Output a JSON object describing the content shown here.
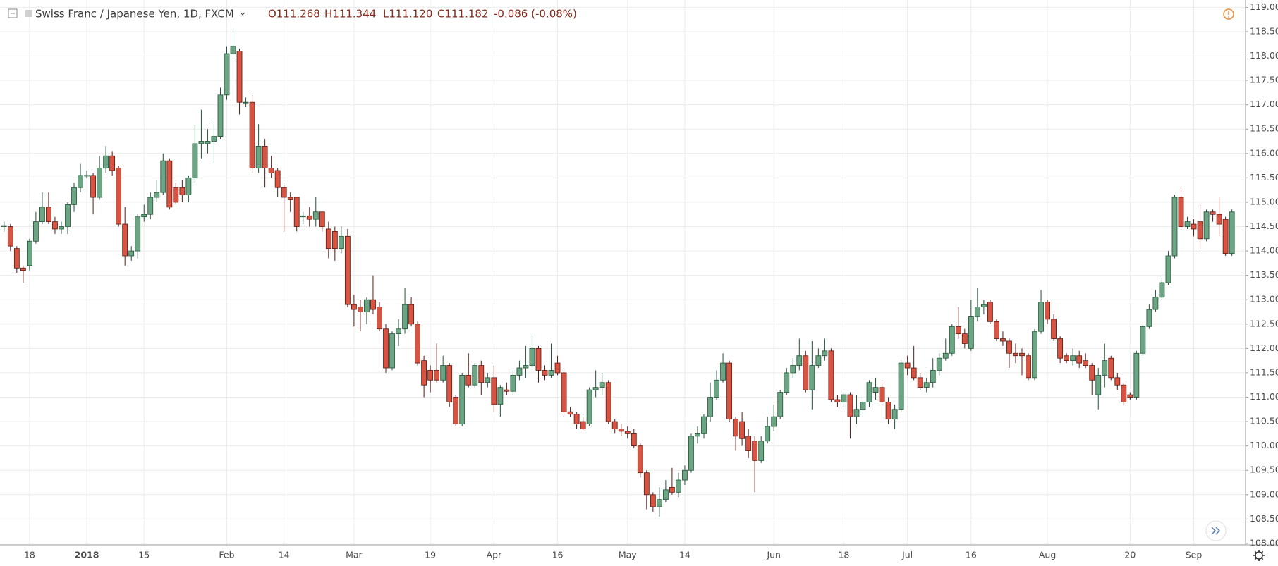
{
  "chart_data": {
    "type": "candlestick",
    "title": "Swiss Franc / Japanese Yen, 1D, FXCM",
    "header_values": [
      "O111.268",
      "H111.344",
      "L111.120",
      "C111.182",
      "-0.086 (-0.08%)"
    ],
    "up_color": "#6ba583",
    "down_color": "#d75442",
    "up_border": "#225437",
    "down_border": "#5b1a13",
    "grid": true,
    "ylim": [
      107.97,
      119.15
    ],
    "yticks": [
      {
        "value": 108,
        "label": "108.000"
      },
      {
        "value": 108.5,
        "label": "108.500"
      },
      {
        "value": 109,
        "label": "109.000"
      },
      {
        "value": 109.5,
        "label": "109.500"
      },
      {
        "value": 110,
        "label": "110.000"
      },
      {
        "value": 110.5,
        "label": "110.500"
      },
      {
        "value": 111,
        "label": "111.000"
      },
      {
        "value": 111.5,
        "label": "111.500"
      },
      {
        "value": 112,
        "label": "112.000"
      },
      {
        "value": 112.5,
        "label": "112.500"
      },
      {
        "value": 113,
        "label": "113.000"
      },
      {
        "value": 113.5,
        "label": "113.500"
      },
      {
        "value": 114,
        "label": "114.000"
      },
      {
        "value": 114.5,
        "label": "114.500"
      },
      {
        "value": 115,
        "label": "115.000"
      },
      {
        "value": 115.5,
        "label": "115.500"
      },
      {
        "value": 116,
        "label": "116.000"
      },
      {
        "value": 116.5,
        "label": "116.500"
      },
      {
        "value": 117,
        "label": "117.000"
      },
      {
        "value": 117.5,
        "label": "117.500"
      },
      {
        "value": 118,
        "label": "118.000"
      },
      {
        "value": 118.5,
        "label": "118.500"
      },
      {
        "value": 119,
        "label": "119.000"
      }
    ],
    "categories": [
      null,
      null,
      null,
      null,
      "18",
      null,
      null,
      null,
      null,
      null,
      null,
      null,
      null,
      "2018",
      null,
      null,
      null,
      null,
      null,
      null,
      null,
      null,
      "15",
      null,
      null,
      null,
      null,
      null,
      null,
      null,
      null,
      null,
      null,
      null,
      null,
      "Feb",
      null,
      null,
      null,
      null,
      null,
      null,
      null,
      null,
      "14",
      null,
      null,
      null,
      null,
      null,
      null,
      null,
      null,
      null,
      null,
      "Mar",
      null,
      null,
      null,
      null,
      null,
      null,
      null,
      null,
      null,
      null,
      null,
      "19",
      null,
      null,
      null,
      null,
      null,
      null,
      null,
      null,
      null,
      "Apr",
      null,
      null,
      null,
      null,
      null,
      null,
      null,
      null,
      null,
      "16",
      null,
      null,
      null,
      null,
      null,
      null,
      null,
      null,
      null,
      null,
      "May",
      null,
      null,
      null,
      null,
      null,
      null,
      null,
      null,
      "14",
      null,
      null,
      null,
      null,
      null,
      null,
      null,
      null,
      null,
      null,
      null,
      null,
      null,
      "Jun",
      null,
      null,
      null,
      null,
      null,
      null,
      null,
      null,
      null,
      null,
      "18",
      null,
      null,
      null,
      null,
      null,
      null,
      null,
      null,
      null,
      "Jul",
      null,
      null,
      null,
      null,
      null,
      null,
      null,
      null,
      null,
      "16",
      null,
      null,
      null,
      null,
      null,
      null,
      null,
      null,
      null,
      null,
      null,
      "Aug",
      null,
      null,
      null,
      null,
      null,
      null,
      null,
      null,
      null,
      null,
      null,
      null,
      "20",
      null,
      null,
      null,
      null,
      null,
      null,
      null,
      null,
      null,
      "Sep",
      null,
      null,
      null,
      null,
      null,
      null
    ],
    "ohlc": [
      [
        114.5,
        114.6,
        114.4,
        114.52
      ],
      [
        114.5,
        114.55,
        114.0,
        114.1
      ],
      [
        114.05,
        114.1,
        113.55,
        113.65
      ],
      [
        113.65,
        113.7,
        113.35,
        113.6
      ],
      [
        113.7,
        114.25,
        113.6,
        114.2
      ],
      [
        114.2,
        114.8,
        114.15,
        114.6
      ],
      [
        114.6,
        115.2,
        114.55,
        114.9
      ],
      [
        114.9,
        115.2,
        114.55,
        114.6
      ],
      [
        114.6,
        114.7,
        114.35,
        114.45
      ],
      [
        114.45,
        114.6,
        114.35,
        114.5
      ],
      [
        114.5,
        115.0,
        114.35,
        114.95
      ],
      [
        114.95,
        115.4,
        114.8,
        115.3
      ],
      [
        115.3,
        115.8,
        115.2,
        115.55
      ],
      [
        115.55,
        115.65,
        115.5,
        115.55
      ],
      [
        115.55,
        115.6,
        114.75,
        115.1
      ],
      [
        115.1,
        115.95,
        115.05,
        115.7
      ],
      [
        115.7,
        116.15,
        115.6,
        115.95
      ],
      [
        115.95,
        116.05,
        115.55,
        115.65
      ],
      [
        115.7,
        115.75,
        114.5,
        114.55
      ],
      [
        114.55,
        114.9,
        113.7,
        113.9
      ],
      [
        113.9,
        114.1,
        113.8,
        114.0
      ],
      [
        114.0,
        114.75,
        113.85,
        114.7
      ],
      [
        114.7,
        114.95,
        114.6,
        114.75
      ],
      [
        114.75,
        115.2,
        114.65,
        115.1
      ],
      [
        115.1,
        115.45,
        115.0,
        115.2
      ],
      [
        115.2,
        116.0,
        115.15,
        115.85
      ],
      [
        115.85,
        115.9,
        114.85,
        114.9
      ],
      [
        115.3,
        115.4,
        114.95,
        115.0
      ],
      [
        115.3,
        115.45,
        115.0,
        115.15
      ],
      [
        115.15,
        115.55,
        115.0,
        115.5
      ],
      [
        115.5,
        116.6,
        115.4,
        116.2
      ],
      [
        116.2,
        116.9,
        115.9,
        116.25
      ],
      [
        116.2,
        116.5,
        116.0,
        116.25
      ],
      [
        116.25,
        116.65,
        115.8,
        116.35
      ],
      [
        116.35,
        117.35,
        116.3,
        117.2
      ],
      [
        117.2,
        118.2,
        117.1,
        118.05
      ],
      [
        118.05,
        118.55,
        117.95,
        118.2
      ],
      [
        118.1,
        118.15,
        116.8,
        117.05
      ],
      [
        117.05,
        117.15,
        116.95,
        117.05
      ],
      [
        117.05,
        117.2,
        115.6,
        115.7
      ],
      [
        115.7,
        116.6,
        115.6,
        116.15
      ],
      [
        116.15,
        116.3,
        115.3,
        115.7
      ],
      [
        115.7,
        115.95,
        115.5,
        115.6
      ],
      [
        115.65,
        115.7,
        115.1,
        115.3
      ],
      [
        115.3,
        115.35,
        114.4,
        115.1
      ],
      [
        115.1,
        115.2,
        114.8,
        115.05
      ],
      [
        115.1,
        115.1,
        114.4,
        114.5
      ],
      [
        114.7,
        114.8,
        114.55,
        114.72
      ],
      [
        114.72,
        114.9,
        114.5,
        114.65
      ],
      [
        114.65,
        115.1,
        114.5,
        114.8
      ],
      [
        114.8,
        114.8,
        114.4,
        114.5
      ],
      [
        114.45,
        114.6,
        113.85,
        114.05
      ],
      [
        114.4,
        114.5,
        113.8,
        114.05
      ],
      [
        114.05,
        114.5,
        113.95,
        114.3
      ],
      [
        114.3,
        114.45,
        112.85,
        112.9
      ],
      [
        112.9,
        113.1,
        112.45,
        112.8
      ],
      [
        112.85,
        113.0,
        112.35,
        112.75
      ],
      [
        112.75,
        113.05,
        112.5,
        113.0
      ],
      [
        113.0,
        113.5,
        112.7,
        112.8
      ],
      [
        112.85,
        112.95,
        112.35,
        112.4
      ],
      [
        112.4,
        112.5,
        111.5,
        111.6
      ],
      [
        111.6,
        112.35,
        111.55,
        112.3
      ],
      [
        112.3,
        112.6,
        112.05,
        112.4
      ],
      [
        112.4,
        113.25,
        112.3,
        112.9
      ],
      [
        112.9,
        113.05,
        112.45,
        112.5
      ],
      [
        112.5,
        112.55,
        111.65,
        111.7
      ],
      [
        111.75,
        111.85,
        111.0,
        111.25
      ],
      [
        111.55,
        111.65,
        111.1,
        111.35
      ],
      [
        111.55,
        112.1,
        111.3,
        111.35
      ],
      [
        111.35,
        111.85,
        111.3,
        111.65
      ],
      [
        111.65,
        111.7,
        110.8,
        110.9
      ],
      [
        111.0,
        111.05,
        110.4,
        110.45
      ],
      [
        110.45,
        111.5,
        110.4,
        111.45
      ],
      [
        111.45,
        111.9,
        111.2,
        111.25
      ],
      [
        111.25,
        111.7,
        111.2,
        111.65
      ],
      [
        111.65,
        111.75,
        111.05,
        111.3
      ],
      [
        111.3,
        111.5,
        111.2,
        111.4
      ],
      [
        111.4,
        111.65,
        110.7,
        110.85
      ],
      [
        110.85,
        111.25,
        110.6,
        111.2
      ],
      [
        111.15,
        111.3,
        111.05,
        111.12
      ],
      [
        111.12,
        111.55,
        111.05,
        111.45
      ],
      [
        111.45,
        111.75,
        111.35,
        111.6
      ],
      [
        111.6,
        112.05,
        111.4,
        111.65
      ],
      [
        111.65,
        112.3,
        111.55,
        112.0
      ],
      [
        112.0,
        112.05,
        111.3,
        111.55
      ],
      [
        111.55,
        111.65,
        111.35,
        111.45
      ],
      [
        111.45,
        112.1,
        111.4,
        111.55
      ],
      [
        111.7,
        111.85,
        111.45,
        111.5
      ],
      [
        111.5,
        111.6,
        110.6,
        110.7
      ],
      [
        110.7,
        110.8,
        110.6,
        110.65
      ],
      [
        110.65,
        110.7,
        110.35,
        110.45
      ],
      [
        110.5,
        110.6,
        110.3,
        110.35
      ],
      [
        110.45,
        111.2,
        110.4,
        111.15
      ],
      [
        111.15,
        111.55,
        111.0,
        111.2
      ],
      [
        111.2,
        111.5,
        111.05,
        111.3
      ],
      [
        111.3,
        111.35,
        110.45,
        110.5
      ],
      [
        110.5,
        110.55,
        110.25,
        110.35
      ],
      [
        110.35,
        110.45,
        110.2,
        110.3
      ],
      [
        110.3,
        110.4,
        110.15,
        110.25
      ],
      [
        110.25,
        110.35,
        109.95,
        110.0
      ],
      [
        110.0,
        110.05,
        109.35,
        109.45
      ],
      [
        109.45,
        109.5,
        108.7,
        109.0
      ],
      [
        109.0,
        109.05,
        108.65,
        108.75
      ],
      [
        108.75,
        109.15,
        108.55,
        108.9
      ],
      [
        108.9,
        109.3,
        108.85,
        109.1
      ],
      [
        109.15,
        109.55,
        109.0,
        109.05
      ],
      [
        109.05,
        109.45,
        108.95,
        109.3
      ],
      [
        109.3,
        109.6,
        109.2,
        109.5
      ],
      [
        109.5,
        110.25,
        109.45,
        110.2
      ],
      [
        110.2,
        110.4,
        110.05,
        110.25
      ],
      [
        110.25,
        110.65,
        110.15,
        110.6
      ],
      [
        110.6,
        111.3,
        110.5,
        111.0
      ],
      [
        111.0,
        111.55,
        110.95,
        111.35
      ],
      [
        111.35,
        111.9,
        111.3,
        111.7
      ],
      [
        111.7,
        111.75,
        110.5,
        110.55
      ],
      [
        110.55,
        110.6,
        109.9,
        110.2
      ],
      [
        110.5,
        110.7,
        110.0,
        110.15
      ],
      [
        110.2,
        110.35,
        109.75,
        109.9
      ],
      [
        110.1,
        110.2,
        109.05,
        109.7
      ],
      [
        109.7,
        110.2,
        109.65,
        110.1
      ],
      [
        110.1,
        110.6,
        110.05,
        110.4
      ],
      [
        110.4,
        110.85,
        110.3,
        110.6
      ],
      [
        110.6,
        111.15,
        110.55,
        111.1
      ],
      [
        111.1,
        111.6,
        111.05,
        111.5
      ],
      [
        111.5,
        111.8,
        111.4,
        111.65
      ],
      [
        111.65,
        112.2,
        111.55,
        111.85
      ],
      [
        111.85,
        111.95,
        111.1,
        111.15
      ],
      [
        111.15,
        112.15,
        110.75,
        111.65
      ],
      [
        111.65,
        112.0,
        111.6,
        111.85
      ],
      [
        111.85,
        112.2,
        111.75,
        111.95
      ],
      [
        111.95,
        112.0,
        110.9,
        110.95
      ],
      [
        110.95,
        111.05,
        110.8,
        110.9
      ],
      [
        110.9,
        111.1,
        110.8,
        111.05
      ],
      [
        111.05,
        111.1,
        110.15,
        110.6
      ],
      [
        110.6,
        111.05,
        110.45,
        110.75
      ],
      [
        110.75,
        111.05,
        110.6,
        110.9
      ],
      [
        110.9,
        111.35,
        110.8,
        111.3
      ],
      [
        111.1,
        111.4,
        110.95,
        111.2
      ],
      [
        111.2,
        111.35,
        110.85,
        110.9
      ],
      [
        110.9,
        111.0,
        110.45,
        110.55
      ],
      [
        110.55,
        110.85,
        110.35,
        110.75
      ],
      [
        110.75,
        111.75,
        110.7,
        111.7
      ],
      [
        111.7,
        111.85,
        111.45,
        111.6
      ],
      [
        111.6,
        112.05,
        111.35,
        111.4
      ],
      [
        111.4,
        111.5,
        111.15,
        111.2
      ],
      [
        111.2,
        111.4,
        111.1,
        111.3
      ],
      [
        111.3,
        111.8,
        111.2,
        111.55
      ],
      [
        111.55,
        111.9,
        111.45,
        111.8
      ],
      [
        111.8,
        112.2,
        111.75,
        111.9
      ],
      [
        111.9,
        112.5,
        111.85,
        112.45
      ],
      [
        112.45,
        112.85,
        112.2,
        112.3
      ],
      [
        112.3,
        112.4,
        112.0,
        112.1
      ],
      [
        112.0,
        113.0,
        111.95,
        112.65
      ],
      [
        112.65,
        113.25,
        112.55,
        112.85
      ],
      [
        112.85,
        113.0,
        112.7,
        112.9
      ],
      [
        112.95,
        113.0,
        112.5,
        112.55
      ],
      [
        112.55,
        112.6,
        112.15,
        112.2
      ],
      [
        112.2,
        112.35,
        112.05,
        112.15
      ],
      [
        112.15,
        112.2,
        111.6,
        111.9
      ],
      [
        111.9,
        112.1,
        111.7,
        111.85
      ],
      [
        111.9,
        112.0,
        111.45,
        111.85
      ],
      [
        111.85,
        111.9,
        111.35,
        111.4
      ],
      [
        111.4,
        112.4,
        111.35,
        112.35
      ],
      [
        112.35,
        113.2,
        112.3,
        112.95
      ],
      [
        112.95,
        113.0,
        112.5,
        112.6
      ],
      [
        112.6,
        112.7,
        112.15,
        112.2
      ],
      [
        112.2,
        112.25,
        111.7,
        111.8
      ],
      [
        111.85,
        111.9,
        111.7,
        111.75
      ],
      [
        111.75,
        112.0,
        111.65,
        111.85
      ],
      [
        111.85,
        111.95,
        111.6,
        111.7
      ],
      [
        111.75,
        111.9,
        111.6,
        111.65
      ],
      [
        111.65,
        111.7,
        111.05,
        111.35
      ],
      [
        111.05,
        111.6,
        110.75,
        111.45
      ],
      [
        111.45,
        112.1,
        111.2,
        111.75
      ],
      [
        111.8,
        111.85,
        111.35,
        111.4
      ],
      [
        111.4,
        111.5,
        111.15,
        111.25
      ],
      [
        111.25,
        111.3,
        110.85,
        110.9
      ],
      [
        111.05,
        111.1,
        110.95,
        111.0
      ],
      [
        111.0,
        111.95,
        110.95,
        111.9
      ],
      [
        111.9,
        112.5,
        111.85,
        112.45
      ],
      [
        112.45,
        112.9,
        112.4,
        112.8
      ],
      [
        112.8,
        113.2,
        112.75,
        113.05
      ],
      [
        113.05,
        113.45,
        113.0,
        113.35
      ],
      [
        113.35,
        114.0,
        113.3,
        113.9
      ],
      [
        113.9,
        115.15,
        113.85,
        115.1
      ],
      [
        115.1,
        115.3,
        114.45,
        114.5
      ],
      [
        114.5,
        114.7,
        114.45,
        114.6
      ],
      [
        114.55,
        114.65,
        114.3,
        114.45
      ],
      [
        114.6,
        114.95,
        114.05,
        114.25
      ],
      [
        114.25,
        114.85,
        114.2,
        114.8
      ],
      [
        114.8,
        114.85,
        114.6,
        114.75
      ],
      [
        114.75,
        115.1,
        114.3,
        114.55
      ],
      [
        114.65,
        114.7,
        113.9,
        113.95
      ],
      [
        113.95,
        114.85,
        113.9,
        114.8
      ]
    ]
  }
}
